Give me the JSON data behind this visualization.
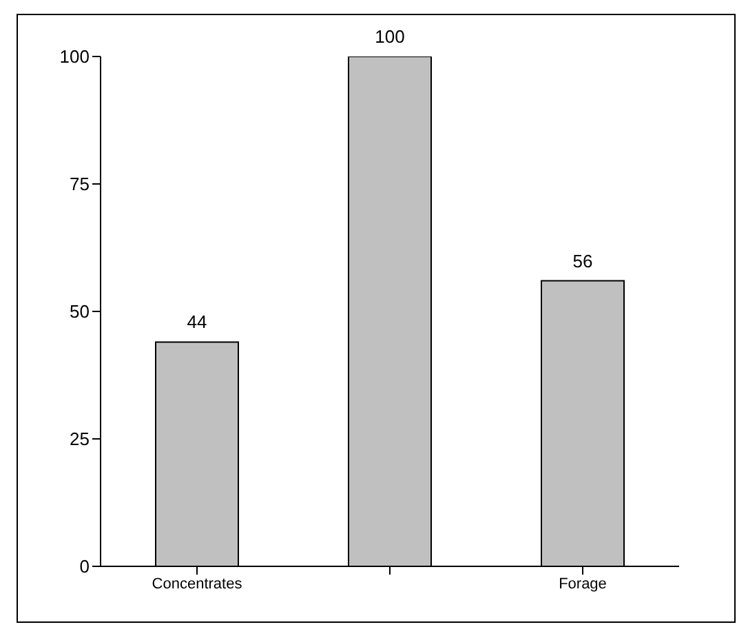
{
  "chart_data": {
    "type": "bar",
    "categories": [
      "Concentrates",
      null,
      "Forage"
    ],
    "values": [
      44,
      100,
      56
    ],
    "color": "#c0c0c0",
    "ylim": [
      0,
      100
    ],
    "yticks": [
      0,
      25,
      50,
      75,
      100
    ],
    "data_labels": true,
    "grid": false
  }
}
